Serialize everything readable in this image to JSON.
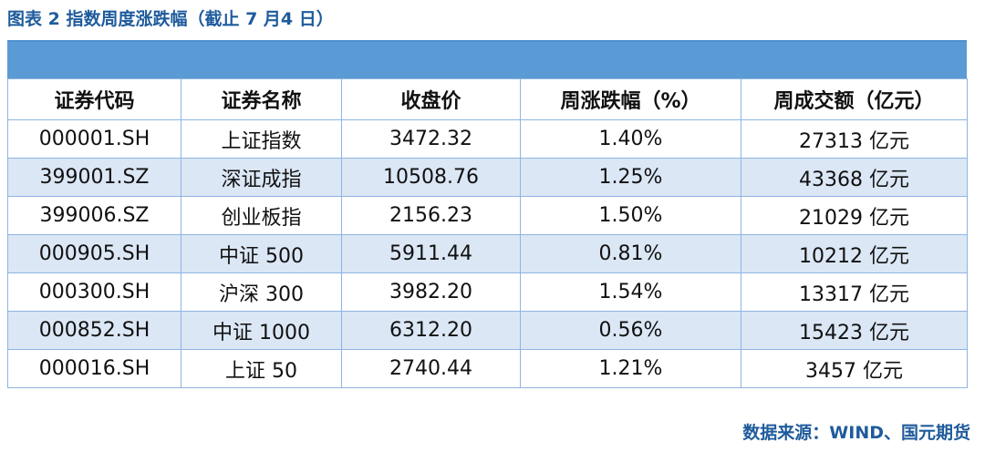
{
  "figure": {
    "title": "图表 2 指数周度涨跌幅（截止 7 月4 日）",
    "source": "数据来源：WIND、国元期货"
  },
  "colors": {
    "title": "#1f5b9c",
    "band": "#5b9bd5",
    "alt_row": "#dbe7f5",
    "border": "#8eb4e3"
  },
  "table": {
    "headers": [
      "证券代码",
      "证券名称",
      "收盘价",
      "周涨跌幅（%）",
      "周成交额（亿元）"
    ],
    "rows": [
      [
        "000001.SH",
        "上证指数",
        "3472.32",
        "1.40%",
        "27313 亿元"
      ],
      [
        "399001.SZ",
        "深证成指",
        "10508.76",
        "1.25%",
        "43368 亿元"
      ],
      [
        "399006.SZ",
        "创业板指",
        "2156.23",
        "1.50%",
        "21029 亿元"
      ],
      [
        "000905.SH",
        "中证 500",
        "5911.44",
        "0.81%",
        "10212 亿元"
      ],
      [
        "000300.SH",
        "沪深 300",
        "3982.20",
        "1.54%",
        "13317 亿元"
      ],
      [
        "000852.SH",
        "中证 1000",
        "6312.20",
        "0.56%",
        "15423 亿元"
      ],
      [
        "000016.SH",
        "上证 50",
        "2740.44",
        "1.21%",
        "3457 亿元"
      ]
    ]
  }
}
